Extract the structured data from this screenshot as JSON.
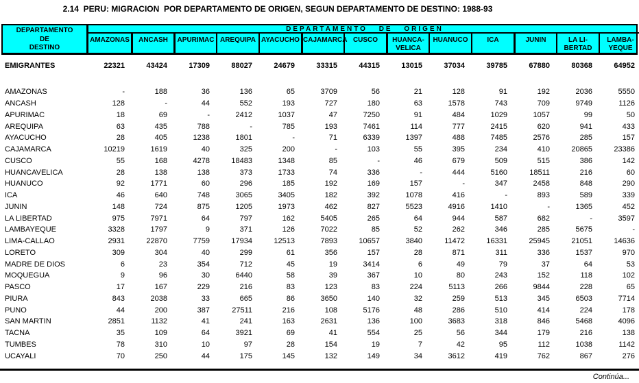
{
  "title": "2.14  PERU: MIGRACION  POR DEPARTAMENTO DE ORIGEN, SEGUN DEPARTAMENTO DE DESTINO: 1988-93",
  "header": {
    "destination_label_lines": [
      "DEPARTAMENTO",
      "DE",
      "DESTINO"
    ],
    "origin_group_label": "DEPARTAMENTO DE ORIGEN",
    "origin_columns": [
      [
        "AMAZONAS"
      ],
      [
        "ANCASH"
      ],
      [
        "APURIMAC"
      ],
      [
        "AREQUIPA"
      ],
      [
        "AYACUCHO"
      ],
      [
        "CAJAMARCA"
      ],
      [
        "CUSCO"
      ],
      [
        "HUANCA-",
        "VELICA"
      ],
      [
        "HUANUCO"
      ],
      [
        "ICA"
      ],
      [
        "JUNIN"
      ],
      [
        "LA LI-",
        "BERTAD"
      ],
      [
        "LAMBA-",
        "YEQUE"
      ]
    ]
  },
  "emigrantes": {
    "label": "EMIGRANTES",
    "values": [
      "22321",
      "43424",
      "17309",
      "88027",
      "24679",
      "33315",
      "44315",
      "13015",
      "37034",
      "39785",
      "67880",
      "80368",
      "64952"
    ]
  },
  "rows": [
    {
      "label": "AMAZONAS",
      "values": [
        "-",
        "188",
        "36",
        "136",
        "65",
        "3709",
        "56",
        "21",
        "128",
        "91",
        "192",
        "2036",
        "5550"
      ]
    },
    {
      "label": "ANCASH",
      "values": [
        "128",
        "-",
        "44",
        "552",
        "193",
        "727",
        "180",
        "63",
        "1578",
        "743",
        "709",
        "9749",
        "1126"
      ]
    },
    {
      "label": "APURIMAC",
      "values": [
        "18",
        "69",
        "-",
        "2412",
        "1037",
        "47",
        "7250",
        "91",
        "484",
        "1029",
        "1057",
        "99",
        "50"
      ]
    },
    {
      "label": "AREQUIPA",
      "values": [
        "63",
        "435",
        "788",
        "-",
        "785",
        "193",
        "7461",
        "114",
        "777",
        "2415",
        "620",
        "941",
        "433"
      ]
    },
    {
      "label": "AYACUCHO",
      "values": [
        "28",
        "405",
        "1238",
        "1801",
        "-",
        "71",
        "6339",
        "1397",
        "488",
        "7485",
        "2576",
        "285",
        "157"
      ]
    },
    {
      "label": "CAJAMARCA",
      "values": [
        "10219",
        "1619",
        "40",
        "325",
        "200",
        "-",
        "103",
        "55",
        "395",
        "234",
        "410",
        "20865",
        "23386"
      ]
    },
    {
      "label": "CUSCO",
      "values": [
        "55",
        "168",
        "4278",
        "18483",
        "1348",
        "85",
        "-",
        "46",
        "679",
        "509",
        "515",
        "386",
        "142"
      ]
    },
    {
      "label": "HUANCAVELICA",
      "values": [
        "28",
        "138",
        "138",
        "373",
        "1733",
        "74",
        "336",
        "-",
        "444",
        "5160",
        "18511",
        "216",
        "60"
      ]
    },
    {
      "label": "HUANUCO",
      "values": [
        "92",
        "1771",
        "60",
        "296",
        "185",
        "192",
        "169",
        "157",
        "-",
        "347",
        "2458",
        "848",
        "290"
      ]
    },
    {
      "label": "ICA",
      "values": [
        "46",
        "640",
        "748",
        "3065",
        "3405",
        "182",
        "392",
        "1078",
        "416",
        "-",
        "893",
        "589",
        "339"
      ]
    },
    {
      "label": "JUNIN",
      "values": [
        "148",
        "724",
        "875",
        "1205",
        "1973",
        "462",
        "827",
        "5523",
        "4916",
        "1410",
        "-",
        "1365",
        "452"
      ]
    },
    {
      "label": "LA LIBERTAD",
      "values": [
        "975",
        "7971",
        "64",
        "797",
        "162",
        "5405",
        "265",
        "64",
        "944",
        "587",
        "682",
        "-",
        "3597"
      ]
    },
    {
      "label": "LAMBAYEQUE",
      "values": [
        "3328",
        "1797",
        "9",
        "371",
        "126",
        "7022",
        "85",
        "52",
        "262",
        "346",
        "285",
        "5675",
        "-"
      ]
    },
    {
      "label": "LIMA-CALLAO",
      "values": [
        "2931",
        "22870",
        "7759",
        "17934",
        "12513",
        "7893",
        "10657",
        "3840",
        "11472",
        "16331",
        "25945",
        "21051",
        "14636"
      ]
    },
    {
      "label": "LORETO",
      "values": [
        "309",
        "304",
        "40",
        "299",
        "61",
        "356",
        "157",
        "28",
        "871",
        "311",
        "336",
        "1537",
        "970"
      ]
    },
    {
      "label": "MADRE DE DIOS",
      "values": [
        "6",
        "23",
        "354",
        "712",
        "45",
        "19",
        "3414",
        "6",
        "49",
        "79",
        "37",
        "64",
        "53"
      ]
    },
    {
      "label": "MOQUEGUA",
      "values": [
        "9",
        "96",
        "30",
        "6440",
        "58",
        "39",
        "367",
        "10",
        "80",
        "243",
        "152",
        "118",
        "102"
      ]
    },
    {
      "label": "PASCO",
      "values": [
        "17",
        "167",
        "229",
        "216",
        "83",
        "123",
        "83",
        "224",
        "5113",
        "266",
        "9844",
        "228",
        "65"
      ]
    },
    {
      "label": "PIURA",
      "values": [
        "843",
        "2038",
        "33",
        "665",
        "86",
        "3650",
        "140",
        "32",
        "259",
        "513",
        "345",
        "6503",
        "7714"
      ]
    },
    {
      "label": "PUNO",
      "values": [
        "44",
        "200",
        "387",
        "27511",
        "216",
        "108",
        "5176",
        "48",
        "286",
        "510",
        "414",
        "224",
        "178"
      ]
    },
    {
      "label": "SAN MARTIN",
      "values": [
        "2851",
        "1132",
        "41",
        "241",
        "163",
        "2631",
        "136",
        "100",
        "3683",
        "318",
        "846",
        "5468",
        "4096"
      ]
    },
    {
      "label": "TACNA",
      "values": [
        "35",
        "109",
        "64",
        "3921",
        "69",
        "41",
        "554",
        "25",
        "56",
        "344",
        "179",
        "216",
        "138"
      ]
    },
    {
      "label": "TUMBES",
      "values": [
        "78",
        "310",
        "10",
        "97",
        "28",
        "154",
        "19",
        "7",
        "42",
        "95",
        "112",
        "1038",
        "1142"
      ]
    },
    {
      "label": "UCAYALI",
      "values": [
        "70",
        "250",
        "44",
        "175",
        "145",
        "132",
        "149",
        "34",
        "3612",
        "419",
        "762",
        "867",
        "276"
      ]
    }
  ],
  "footer": {
    "continua_label": "Continúa..."
  },
  "colors": {
    "header_bg": "#00FFFF",
    "border": "#000000",
    "text": "#000000",
    "page_bg": "#FFFFFF"
  }
}
